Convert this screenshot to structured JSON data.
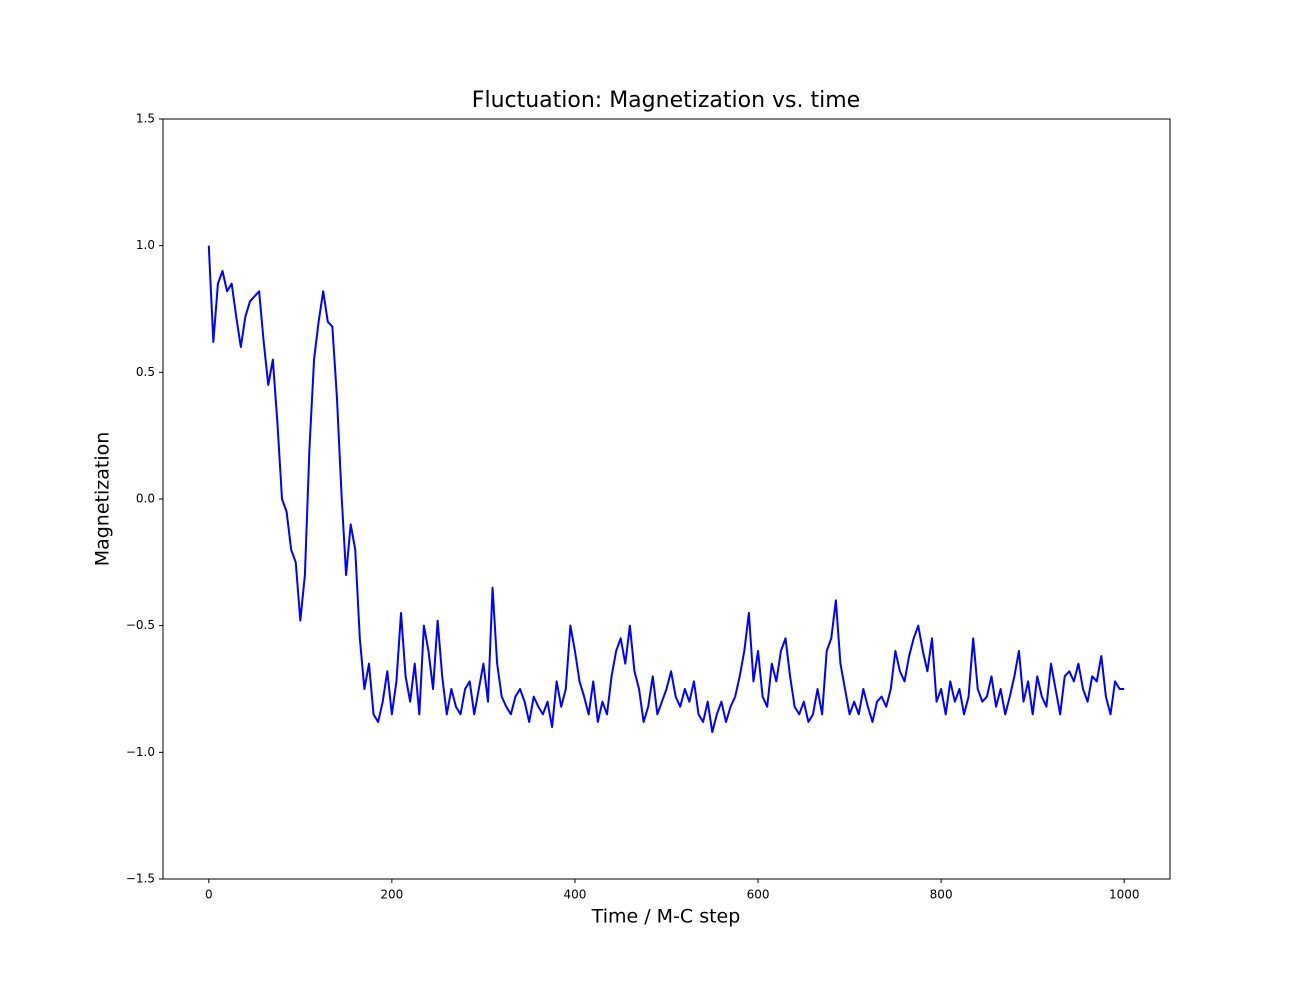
{
  "chart_data": {
    "type": "line",
    "title": "Fluctuation: Magnetization vs. time",
    "x_label": "Time / M-C step",
    "y_label": "Magnetization",
    "x": [
      0,
      5,
      10,
      15,
      20,
      25,
      30,
      35,
      40,
      45,
      50,
      55,
      60,
      65,
      70,
      75,
      80,
      85,
      90,
      95,
      100,
      105,
      110,
      115,
      120,
      125,
      130,
      135,
      140,
      145,
      150,
      155,
      160,
      165,
      170,
      175,
      180,
      185,
      190,
      195,
      200,
      205,
      210,
      215,
      220,
      225,
      230,
      235,
      240,
      245,
      250,
      255,
      260,
      265,
      270,
      275,
      280,
      285,
      290,
      295,
      300,
      305,
      310,
      315,
      320,
      325,
      330,
      335,
      340,
      345,
      350,
      355,
      360,
      365,
      370,
      375,
      380,
      385,
      390,
      395,
      400,
      405,
      410,
      415,
      420,
      425,
      430,
      435,
      440,
      445,
      450,
      455,
      460,
      465,
      470,
      475,
      480,
      485,
      490,
      495,
      500,
      505,
      510,
      515,
      520,
      525,
      530,
      535,
      540,
      545,
      550,
      555,
      560,
      565,
      570,
      575,
      580,
      585,
      590,
      595,
      600,
      605,
      610,
      615,
      620,
      625,
      630,
      635,
      640,
      645,
      650,
      655,
      660,
      665,
      670,
      675,
      680,
      685,
      690,
      695,
      700,
      705,
      710,
      715,
      720,
      725,
      730,
      735,
      740,
      745,
      750,
      755,
      760,
      765,
      770,
      775,
      780,
      785,
      790,
      795,
      800,
      805,
      810,
      815,
      820,
      825,
      830,
      835,
      840,
      845,
      850,
      855,
      860,
      865,
      870,
      875,
      880,
      885,
      890,
      895,
      900,
      905,
      910,
      915,
      920,
      925,
      930,
      935,
      940,
      945,
      950,
      955,
      960,
      965,
      970,
      975,
      980,
      985,
      990,
      995,
      1000
    ],
    "series": [
      {
        "name": "Magnetization",
        "color": "#0000ff",
        "values": [
          1.0,
          0.62,
          0.85,
          0.9,
          0.82,
          0.85,
          0.72,
          0.6,
          0.72,
          0.78,
          0.8,
          0.82,
          0.62,
          0.45,
          0.55,
          0.3,
          0.0,
          -0.05,
          -0.2,
          -0.25,
          -0.48,
          -0.3,
          0.2,
          0.55,
          0.7,
          0.82,
          0.7,
          0.68,
          0.4,
          0.02,
          -0.3,
          -0.1,
          -0.2,
          -0.55,
          -0.75,
          -0.65,
          -0.85,
          -0.88,
          -0.8,
          -0.68,
          -0.85,
          -0.72,
          -0.45,
          -0.7,
          -0.8,
          -0.65,
          -0.85,
          -0.5,
          -0.6,
          -0.75,
          -0.48,
          -0.7,
          -0.85,
          -0.75,
          -0.82,
          -0.85,
          -0.75,
          -0.72,
          -0.85,
          -0.75,
          -0.65,
          -0.8,
          -0.35,
          -0.65,
          -0.78,
          -0.82,
          -0.85,
          -0.78,
          -0.75,
          -0.8,
          -0.88,
          -0.78,
          -0.82,
          -0.85,
          -0.8,
          -0.9,
          -0.72,
          -0.82,
          -0.75,
          -0.5,
          -0.6,
          -0.72,
          -0.78,
          -0.85,
          -0.72,
          -0.88,
          -0.8,
          -0.85,
          -0.7,
          -0.6,
          -0.55,
          -0.65,
          -0.5,
          -0.68,
          -0.75,
          -0.88,
          -0.82,
          -0.7,
          -0.85,
          -0.8,
          -0.75,
          -0.68,
          -0.78,
          -0.82,
          -0.75,
          -0.8,
          -0.72,
          -0.85,
          -0.88,
          -0.8,
          -0.92,
          -0.85,
          -0.8,
          -0.88,
          -0.82,
          -0.78,
          -0.7,
          -0.6,
          -0.45,
          -0.72,
          -0.6,
          -0.78,
          -0.82,
          -0.65,
          -0.72,
          -0.6,
          -0.55,
          -0.7,
          -0.82,
          -0.85,
          -0.8,
          -0.88,
          -0.85,
          -0.75,
          -0.85,
          -0.6,
          -0.55,
          -0.4,
          -0.65,
          -0.75,
          -0.85,
          -0.8,
          -0.85,
          -0.75,
          -0.82,
          -0.88,
          -0.8,
          -0.78,
          -0.82,
          -0.75,
          -0.6,
          -0.68,
          -0.72,
          -0.62,
          -0.55,
          -0.5,
          -0.6,
          -0.68,
          -0.55,
          -0.8,
          -0.75,
          -0.85,
          -0.72,
          -0.8,
          -0.75,
          -0.85,
          -0.78,
          -0.55,
          -0.75,
          -0.8,
          -0.78,
          -0.7,
          -0.82,
          -0.75,
          -0.85,
          -0.78,
          -0.7,
          -0.6,
          -0.8,
          -0.72,
          -0.85,
          -0.7,
          -0.78,
          -0.82,
          -0.65,
          -0.75,
          -0.85,
          -0.7,
          -0.68,
          -0.72,
          -0.65,
          -0.75,
          -0.8,
          -0.7,
          -0.72,
          -0.62,
          -0.78,
          -0.85,
          -0.72,
          -0.75,
          -0.75
        ]
      }
    ],
    "xlim": [
      -50,
      1050
    ],
    "xticks": [
      0,
      200,
      400,
      600,
      800,
      1000
    ],
    "ylim": [
      -1.5,
      1.5
    ],
    "yticks": [
      {
        "value": -1.5,
        "label": "−1.5"
      },
      {
        "value": -1,
        "label": "−1.0"
      },
      {
        "value": -0.5,
        "label": "−0.5"
      },
      {
        "value": 0,
        "label": "0.0"
      },
      {
        "value": 0.5,
        "label": "0.5"
      },
      {
        "value": 1,
        "label": "1.0"
      },
      {
        "value": 1.5,
        "label": "1.5"
      }
    ],
    "grid": false
  }
}
